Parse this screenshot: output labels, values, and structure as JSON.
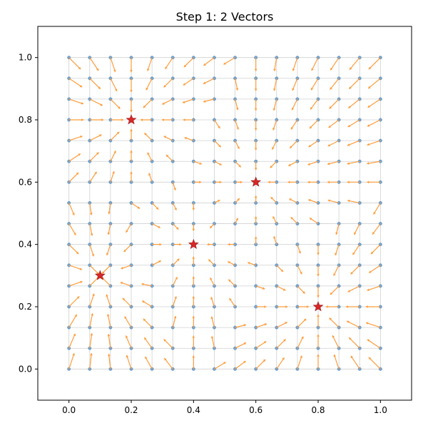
{
  "chart_data": {
    "type": "quiver",
    "title": "Step 1: 2 Vectors",
    "xlabel": "",
    "ylabel": "",
    "xlim": [
      -0.1,
      1.1
    ],
    "ylim": [
      -0.1,
      1.1
    ],
    "xticks": [
      "0.0",
      "0.2",
      "0.4",
      "0.6",
      "0.8",
      "1.0"
    ],
    "yticks": [
      "0.0",
      "0.2",
      "0.4",
      "0.6",
      "0.8",
      "1.0"
    ],
    "grid": {
      "n": 16,
      "min": 0.0,
      "max": 1.0,
      "point_color": "#6fa3d3",
      "line_color": "#d0d0d0"
    },
    "arrow_color": "#ff9c3a",
    "star_color": "#d62728",
    "stars": [
      {
        "x": 0.2,
        "y": 0.8
      },
      {
        "x": 0.6,
        "y": 0.6
      },
      {
        "x": 0.4,
        "y": 0.4
      },
      {
        "x": 0.1,
        "y": 0.3
      },
      {
        "x": 0.8,
        "y": 0.2
      }
    ],
    "arrow_model": "vectors point from each grid point toward the nearest star; length grows with distance from the field center"
  }
}
